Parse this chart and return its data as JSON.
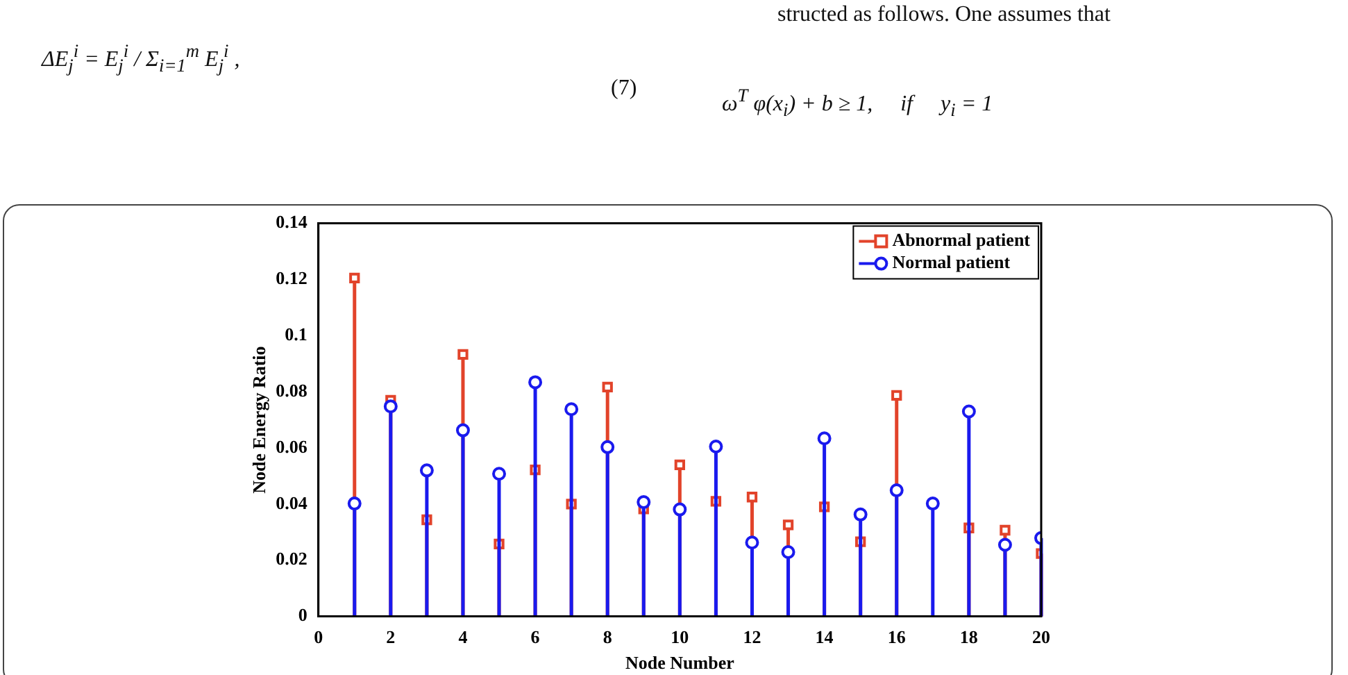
{
  "chart_data": {
    "type": "lollipop",
    "xlabel": "Node Number",
    "ylabel": "Node Energy Ratio",
    "x": [
      1,
      2,
      3,
      4,
      5,
      6,
      7,
      8,
      9,
      10,
      11,
      12,
      13,
      14,
      15,
      16,
      17,
      18,
      19,
      20
    ],
    "series": [
      {
        "name": "Abnormal patient",
        "color": "#e2432a",
        "marker": "square",
        "values": [
          0.1205,
          0.077,
          0.0344,
          0.0933,
          0.0258,
          0.0522,
          0.04,
          0.0817,
          0.0383,
          0.054,
          0.041,
          0.0425,
          0.0326,
          0.039,
          0.0266,
          0.0787,
          null,
          0.0315,
          0.0307,
          0.0224
        ]
      },
      {
        "name": "Normal patient",
        "color": "#1a1aee",
        "marker": "circle",
        "values": [
          0.0402,
          0.0748,
          0.052,
          0.0663,
          0.0508,
          0.0834,
          0.0738,
          0.0603,
          0.0407,
          0.0381,
          0.0605,
          0.0263,
          0.0229,
          0.0634,
          0.0363,
          0.0449,
          0.0402,
          0.073,
          0.0255,
          0.0279
        ]
      }
    ],
    "xlim": [
      0,
      20
    ],
    "xticks": [
      0,
      2,
      4,
      6,
      8,
      10,
      12,
      14,
      16,
      18,
      20
    ],
    "ylim": [
      0,
      0.14
    ],
    "yticks": [
      0,
      0.02,
      0.04,
      0.06,
      0.08,
      0.1,
      0.12,
      0.14
    ],
    "grid": false,
    "legend": "top right",
    "annotations": [
      "ΔE$_{j}$$^{i}$ = E$_{j}$$^{i}$ / Σ$_{i=1}$$^{m}$ E$_{j}$$^{i}$ ,",
      "(7)",
      "structed as follows. One assumes that",
      "ω$^{T}$ φ(x$_{i}$) + b ≥ 1,     if     y$_{i}$ = 1"
    ]
  }
}
